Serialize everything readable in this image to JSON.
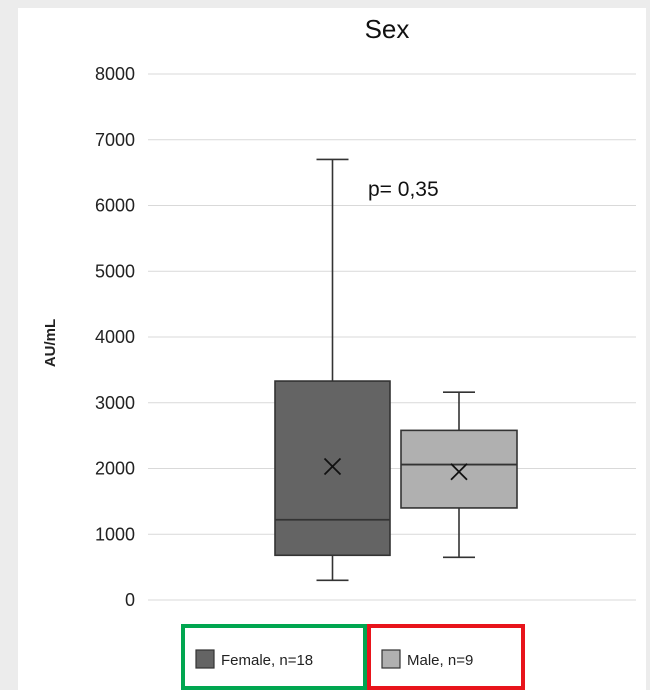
{
  "chart_data": {
    "type": "box",
    "title": "Sex",
    "ylabel": "AU/mL",
    "xlabel": "",
    "ylim": [
      0,
      8000
    ],
    "yticks": [
      "0",
      "1000",
      "2000",
      "3000",
      "4000",
      "5000",
      "6000",
      "7000",
      "8000"
    ],
    "grid": true,
    "annotation": "p= 0,35",
    "legend_position": "bottom",
    "series": [
      {
        "name": "Female, n=18",
        "color": "#646464",
        "min": 300,
        "q1": 680,
        "median": 1220,
        "q3": 3330,
        "max": 6700,
        "mean": 2030,
        "legend_box_color": "#00a650"
      },
      {
        "name": "Male, n=9",
        "color": "#b0b0b0",
        "min": 650,
        "q1": 1400,
        "median": 2060,
        "q3": 2580,
        "max": 3160,
        "mean": 1950,
        "legend_box_color": "#e8141b"
      }
    ]
  }
}
